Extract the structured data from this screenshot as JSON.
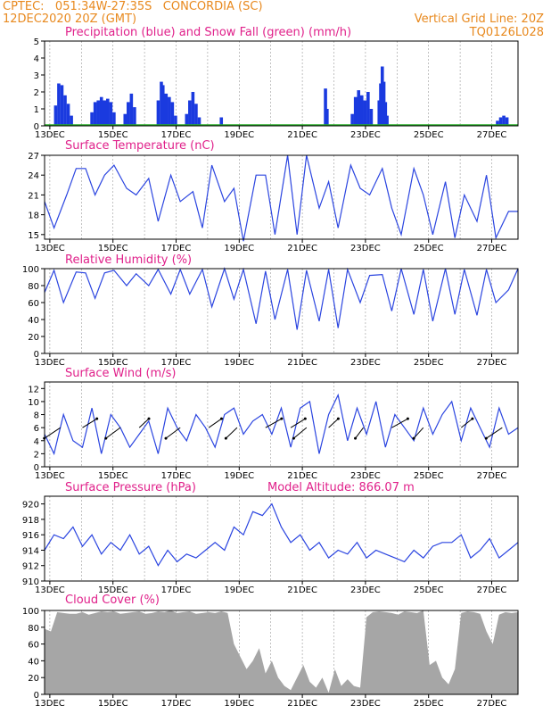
{
  "header": {
    "left_line1": "CPTEC:   051:34W-27:35S   CONCORDIA (SC)",
    "left_line2": "12DEC2020 20Z (GMT)",
    "right_line1": "Vertical Grid Line: 20Z",
    "right_line2": "TQ0126L028"
  },
  "x_tick_labels": [
    "13DEC",
    "15DEC",
    "17DEC",
    "19DEC",
    "21DEC",
    "23DEC",
    "25DEC",
    "27DEC"
  ],
  "chart_data": [
    {
      "type": "bar",
      "title": "Precipitation (blue) and Snow Fall (green) (mm/h)",
      "ylim": [
        0,
        5
      ],
      "yticks": [
        0,
        1,
        2,
        3,
        4,
        5
      ],
      "x_unit": "days since 12DEC 20Z",
      "series": [
        {
          "name": "Precipitation",
          "color": "#1a3adf",
          "points": [
            [
              0.35,
              1.2
            ],
            [
              0.45,
              2.5
            ],
            [
              0.55,
              2.4
            ],
            [
              0.65,
              1.8
            ],
            [
              0.75,
              1.3
            ],
            [
              0.85,
              0.6
            ],
            [
              1.5,
              0.8
            ],
            [
              1.6,
              1.4
            ],
            [
              1.7,
              1.5
            ],
            [
              1.8,
              1.7
            ],
            [
              1.9,
              1.5
            ],
            [
              2.0,
              1.6
            ],
            [
              2.1,
              1.4
            ],
            [
              2.2,
              0.8
            ],
            [
              2.55,
              0.7
            ],
            [
              2.65,
              1.4
            ],
            [
              2.75,
              1.9
            ],
            [
              2.85,
              1.1
            ],
            [
              3.6,
              1.5
            ],
            [
              3.7,
              2.6
            ],
            [
              3.75,
              2.4
            ],
            [
              3.85,
              1.9
            ],
            [
              3.95,
              1.7
            ],
            [
              4.05,
              1.4
            ],
            [
              4.15,
              0.6
            ],
            [
              4.5,
              0.7
            ],
            [
              4.6,
              1.5
            ],
            [
              4.7,
              2.0
            ],
            [
              4.8,
              1.3
            ],
            [
              4.9,
              0.5
            ],
            [
              5.6,
              0.5
            ],
            [
              8.9,
              2.2
            ],
            [
              8.95,
              1.0
            ],
            [
              9.75,
              0.7
            ],
            [
              9.85,
              1.7
            ],
            [
              9.95,
              2.1
            ],
            [
              10.05,
              1.8
            ],
            [
              10.15,
              1.5
            ],
            [
              10.25,
              2.0
            ],
            [
              10.35,
              1.0
            ],
            [
              10.6,
              1.5
            ],
            [
              10.65,
              2.5
            ],
            [
              10.7,
              3.5
            ],
            [
              10.75,
              2.6
            ],
            [
              10.8,
              1.4
            ],
            [
              10.85,
              0.6
            ],
            [
              14.35,
              0.3
            ],
            [
              14.45,
              0.5
            ],
            [
              14.55,
              0.6
            ],
            [
              14.65,
              0.5
            ]
          ]
        },
        {
          "name": "Snow Fall",
          "color": "#22a822",
          "values": "all zero"
        }
      ]
    },
    {
      "type": "line",
      "title": "Surface Temperature (nC)",
      "ylim": [
        14.3,
        27
      ],
      "yticks": [
        15,
        18,
        21,
        24,
        27
      ],
      "x_unit": "days since 12DEC 20Z",
      "x": [
        0,
        0.3,
        0.7,
        1.0,
        1.3,
        1.6,
        1.9,
        2.2,
        2.6,
        2.9,
        3.3,
        3.6,
        4.0,
        4.3,
        4.7,
        5.0,
        5.3,
        5.7,
        6.0,
        6.3,
        6.7,
        7.0,
        7.3,
        7.7,
        8.0,
        8.3,
        8.7,
        9.0,
        9.3,
        9.7,
        10.0,
        10.3,
        10.7,
        11.0,
        11.3,
        11.7,
        12.0,
        12.3,
        12.7,
        13.0,
        13.3,
        13.7,
        14.0,
        14.3,
        14.7,
        15.0
      ],
      "y": [
        20,
        16,
        21,
        25,
        25,
        21,
        24,
        25.5,
        22,
        21,
        23.5,
        17,
        24,
        20,
        21.5,
        16,
        25.5,
        20,
        22,
        14,
        24,
        24,
        15,
        27,
        15,
        27,
        19,
        23,
        16,
        25.5,
        22,
        21,
        25,
        19,
        15,
        25,
        21,
        15,
        23,
        14.5,
        21,
        17,
        24,
        14.5,
        18.5,
        18.5
      ]
    },
    {
      "type": "line",
      "title": "Relative Humidity (%)",
      "ylim": [
        0,
        100
      ],
      "yticks": [
        0,
        20,
        40,
        60,
        80,
        100
      ],
      "x_unit": "days since 12DEC 20Z",
      "x": [
        0,
        0.3,
        0.6,
        1.0,
        1.3,
        1.6,
        1.9,
        2.2,
        2.6,
        2.9,
        3.3,
        3.6,
        4.0,
        4.3,
        4.6,
        5.0,
        5.3,
        5.7,
        6.0,
        6.3,
        6.7,
        7.0,
        7.3,
        7.7,
        8.0,
        8.3,
        8.7,
        9.0,
        9.3,
        9.6,
        10.0,
        10.3,
        10.7,
        11.0,
        11.3,
        11.7,
        12.0,
        12.3,
        12.7,
        13.0,
        13.3,
        13.7,
        14.0,
        14.3,
        14.7,
        15.0
      ],
      "y": [
        72,
        98,
        60,
        96,
        95,
        65,
        95,
        98,
        80,
        94,
        80,
        99,
        70,
        99,
        70,
        99,
        55,
        100,
        64,
        99,
        35,
        97,
        40,
        99,
        28,
        98,
        38,
        99,
        30,
        99,
        60,
        92,
        93,
        50,
        100,
        46,
        99,
        38,
        100,
        46,
        99,
        45,
        99,
        60,
        75,
        100
      ]
    },
    {
      "type": "line",
      "title": "Surface Wind (m/s)",
      "ylim": [
        0,
        13
      ],
      "yticks": [
        0,
        2,
        4,
        6,
        8,
        10,
        12
      ],
      "x_unit": "days since 12DEC 20Z",
      "x": [
        0,
        0.3,
        0.6,
        0.9,
        1.2,
        1.5,
        1.8,
        2.1,
        2.4,
        2.7,
        3.0,
        3.3,
        3.6,
        3.9,
        4.2,
        4.5,
        4.8,
        5.1,
        5.4,
        5.7,
        6.0,
        6.3,
        6.6,
        6.9,
        7.2,
        7.5,
        7.8,
        8.1,
        8.4,
        8.7,
        9.0,
        9.3,
        9.6,
        9.9,
        10.2,
        10.5,
        10.8,
        11.1,
        11.4,
        11.7,
        12.0,
        12.3,
        12.6,
        12.9,
        13.2,
        13.5,
        13.8,
        14.1,
        14.4,
        14.7,
        15.0
      ],
      "y": [
        5,
        2,
        8,
        4,
        3,
        9,
        2,
        8,
        6,
        3,
        5,
        7,
        2,
        9,
        6,
        4,
        8,
        6,
        3,
        8,
        9,
        5,
        7,
        8,
        5,
        9,
        3,
        9,
        10,
        2,
        8,
        11,
        4,
        9,
        5,
        10,
        3,
        8,
        6,
        4,
        9,
        5,
        8,
        10,
        4,
        9,
        6,
        3,
        9,
        5,
        6
      ],
      "wind_vectors": "arrows shown along the 6 m/s level"
    },
    {
      "type": "line",
      "title": "Surface Pressure (hPa)",
      "annotation": "Model Altitude: 866.07 m",
      "ylim": [
        910,
        921
      ],
      "yticks": [
        910,
        912,
        914,
        916,
        918,
        920
      ],
      "x_unit": "days since 12DEC 20Z",
      "x": [
        0,
        0.3,
        0.6,
        0.9,
        1.2,
        1.5,
        1.8,
        2.1,
        2.4,
        2.7,
        3.0,
        3.3,
        3.6,
        3.9,
        4.2,
        4.5,
        4.8,
        5.1,
        5.4,
        5.7,
        6.0,
        6.3,
        6.6,
        6.9,
        7.2,
        7.5,
        7.8,
        8.1,
        8.4,
        8.7,
        9.0,
        9.3,
        9.6,
        9.9,
        10.2,
        10.5,
        10.8,
        11.1,
        11.4,
        11.7,
        12.0,
        12.3,
        12.6,
        12.9,
        13.2,
        13.5,
        13.8,
        14.1,
        14.4,
        14.7,
        15.0
      ],
      "y": [
        914,
        916,
        915.5,
        917,
        914.5,
        916,
        913.5,
        915,
        914,
        916,
        913.5,
        914.5,
        912,
        914,
        912.5,
        913.5,
        913,
        914,
        915,
        914,
        917,
        916,
        919,
        918.5,
        920,
        917,
        915,
        916,
        914,
        915,
        913,
        914,
        913.5,
        915,
        913,
        914,
        913.5,
        913,
        912.5,
        914,
        913,
        914.5,
        915,
        915,
        916,
        913,
        914,
        915.5,
        913,
        914,
        915
      ]
    },
    {
      "type": "area",
      "title": "Cloud Cover (%)",
      "ylim": [
        0,
        100
      ],
      "yticks": [
        0,
        20,
        40,
        60,
        80,
        100
      ],
      "x_unit": "days since 12DEC 20Z",
      "color": "#a6a6a6",
      "x": [
        0,
        0.2,
        0.4,
        0.6,
        0.8,
        1.0,
        1.2,
        1.4,
        1.6,
        1.8,
        2.0,
        2.2,
        2.4,
        2.6,
        2.8,
        3.0,
        3.2,
        3.4,
        3.6,
        3.8,
        4.0,
        4.2,
        4.4,
        4.6,
        4.8,
        5.0,
        5.2,
        5.4,
        5.6,
        5.8,
        6.0,
        6.2,
        6.4,
        6.6,
        6.8,
        7.0,
        7.2,
        7.4,
        7.6,
        7.8,
        8.0,
        8.2,
        8.4,
        8.6,
        8.8,
        9.0,
        9.2,
        9.4,
        9.6,
        9.8,
        10.0,
        10.2,
        10.4,
        10.6,
        10.8,
        11.0,
        11.2,
        11.4,
        11.6,
        11.8,
        12.0,
        12.2,
        12.4,
        12.6,
        12.8,
        13.0,
        13.2,
        13.4,
        13.6,
        13.8,
        14.0,
        14.2,
        14.4,
        14.6,
        14.8,
        15.0
      ],
      "y": [
        78,
        75,
        98,
        97,
        96,
        96,
        98,
        95,
        97,
        99,
        98,
        99,
        96,
        97,
        98,
        99,
        96,
        97,
        99,
        98,
        100,
        97,
        98,
        99,
        96,
        97,
        98,
        97,
        99,
        97,
        60,
        45,
        30,
        40,
        55,
        25,
        40,
        20,
        10,
        5,
        20,
        35,
        15,
        8,
        20,
        2,
        30,
        10,
        18,
        10,
        8,
        92,
        98,
        99,
        98,
        97,
        95,
        99,
        98,
        97,
        100,
        35,
        40,
        20,
        12,
        30,
        97,
        99,
        98,
        96,
        75,
        60,
        95,
        98,
        97,
        98
      ]
    }
  ]
}
